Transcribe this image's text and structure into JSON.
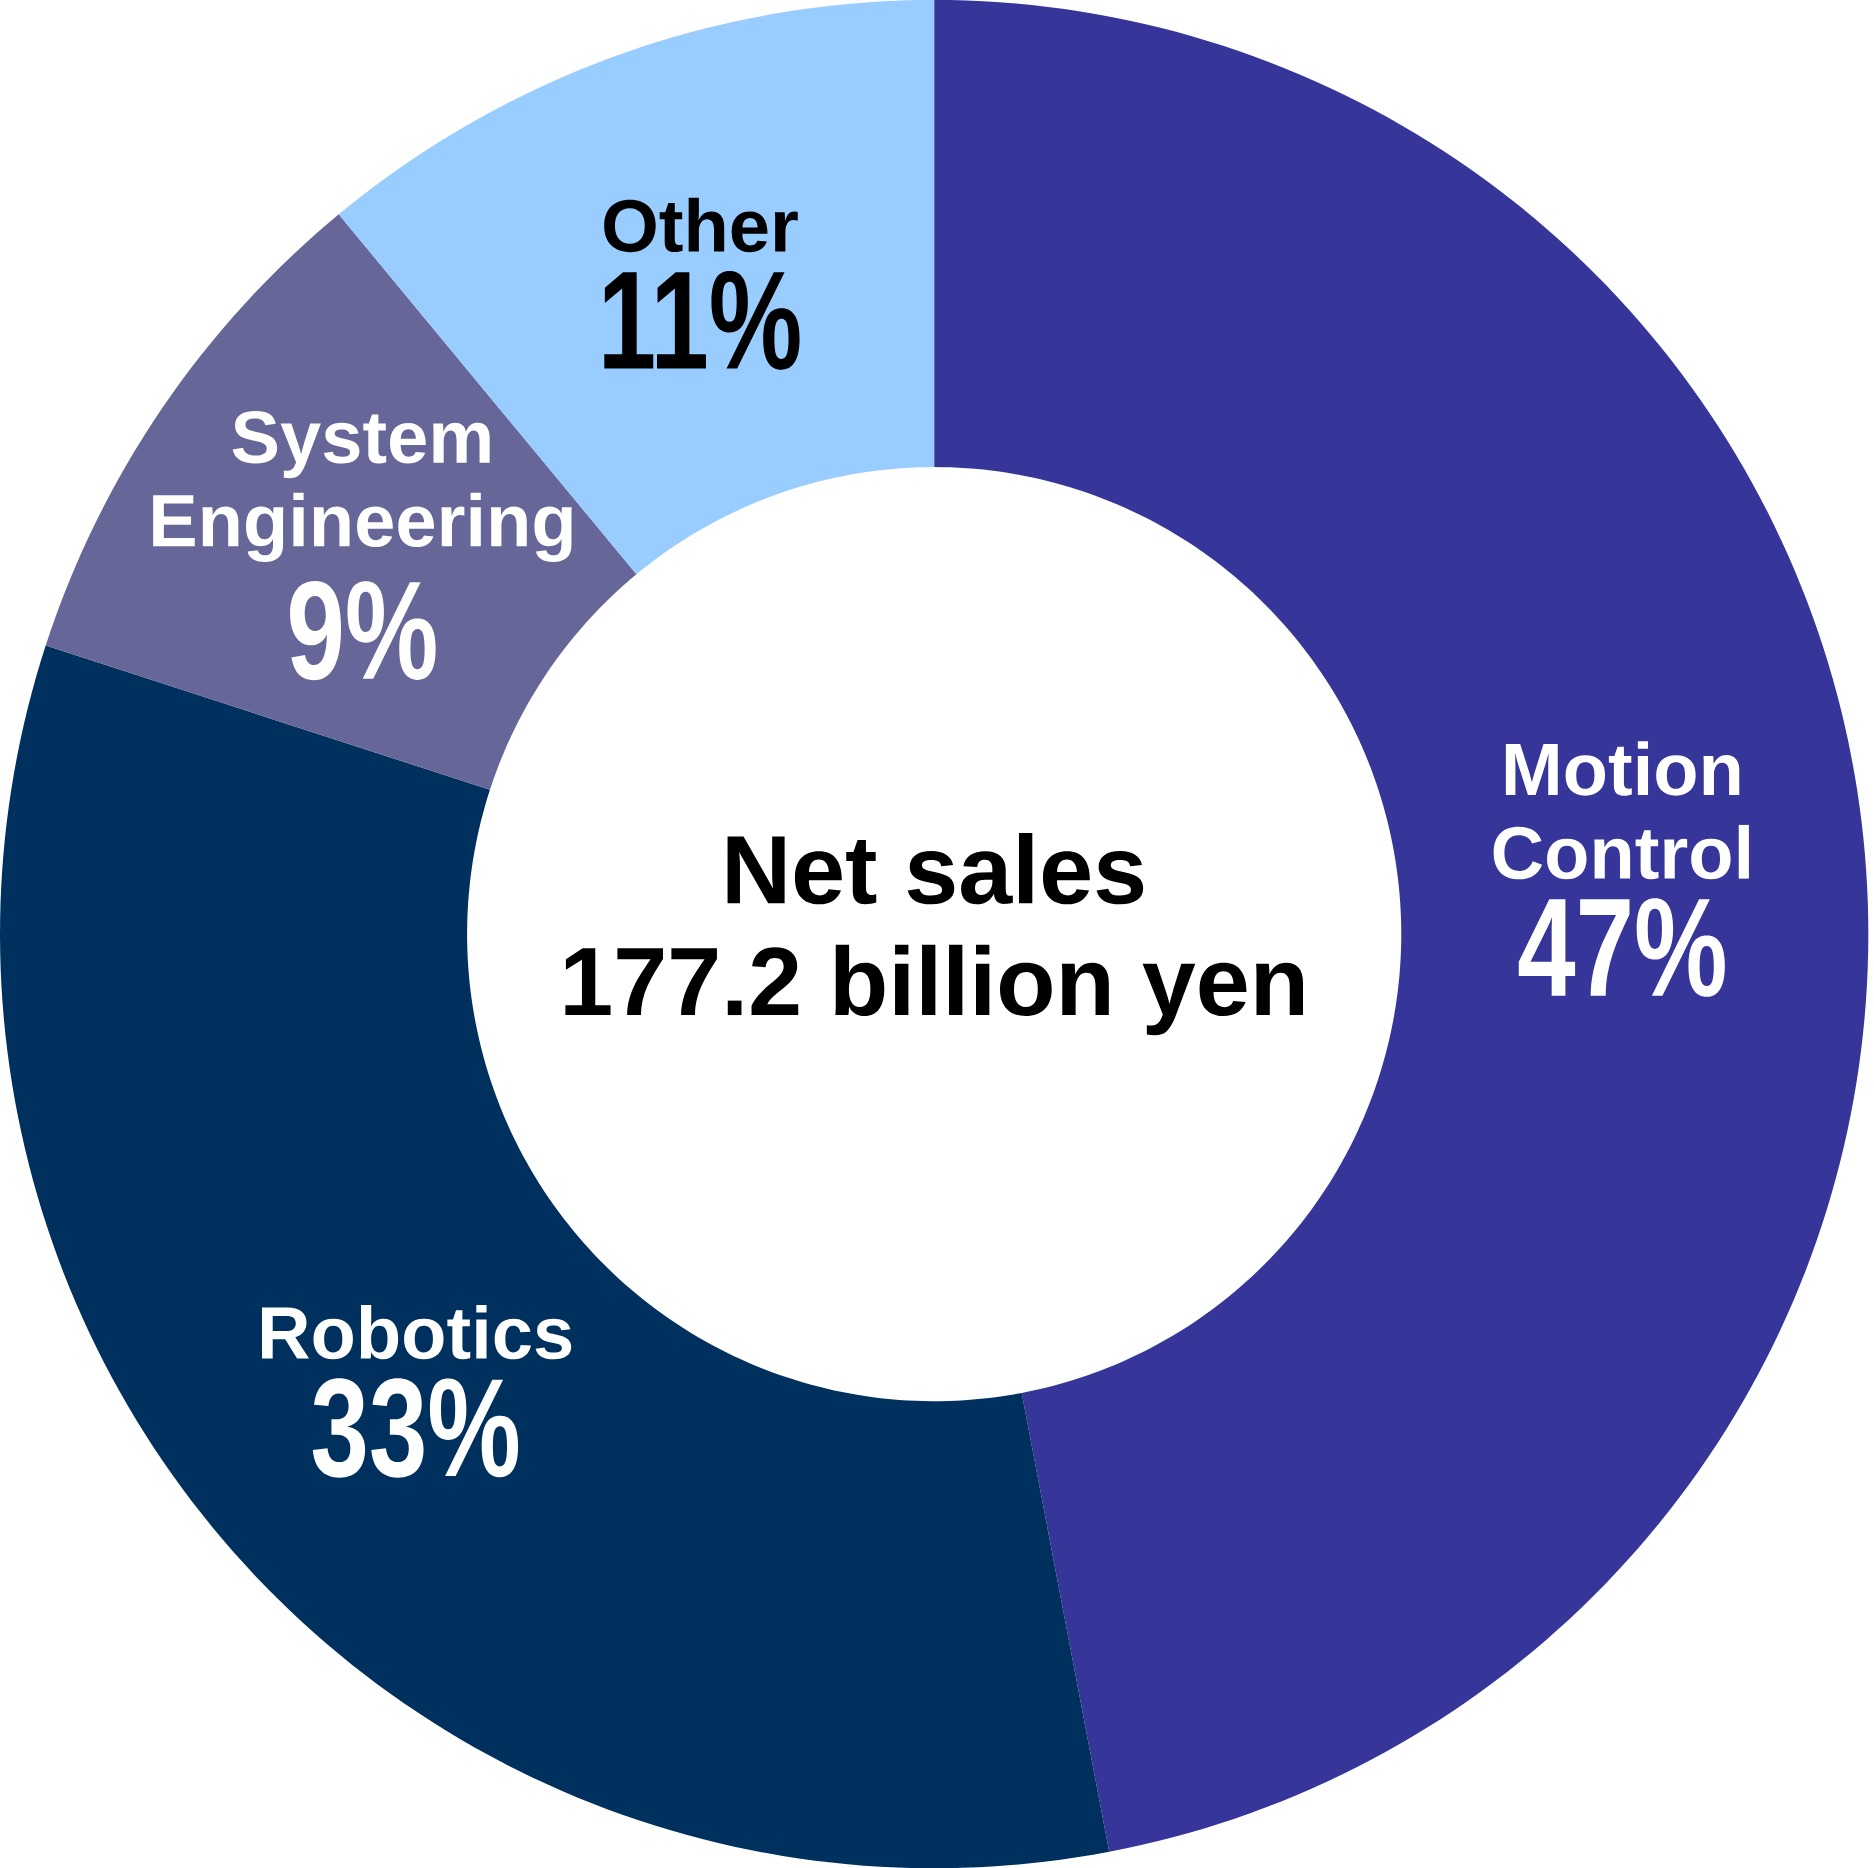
{
  "chart_data": {
    "type": "donut",
    "title": "Net sales",
    "subtitle": "177.2 billion yen",
    "categories": [
      "Motion Control",
      "Robotics",
      "System Engineering",
      "Other"
    ],
    "values": [
      47,
      33,
      9,
      11
    ],
    "value_labels": [
      "47%",
      "33%",
      "9%",
      "11%"
    ],
    "colors": [
      "#363599",
      "#00305e",
      "#666699",
      "#99ccff"
    ]
  }
}
